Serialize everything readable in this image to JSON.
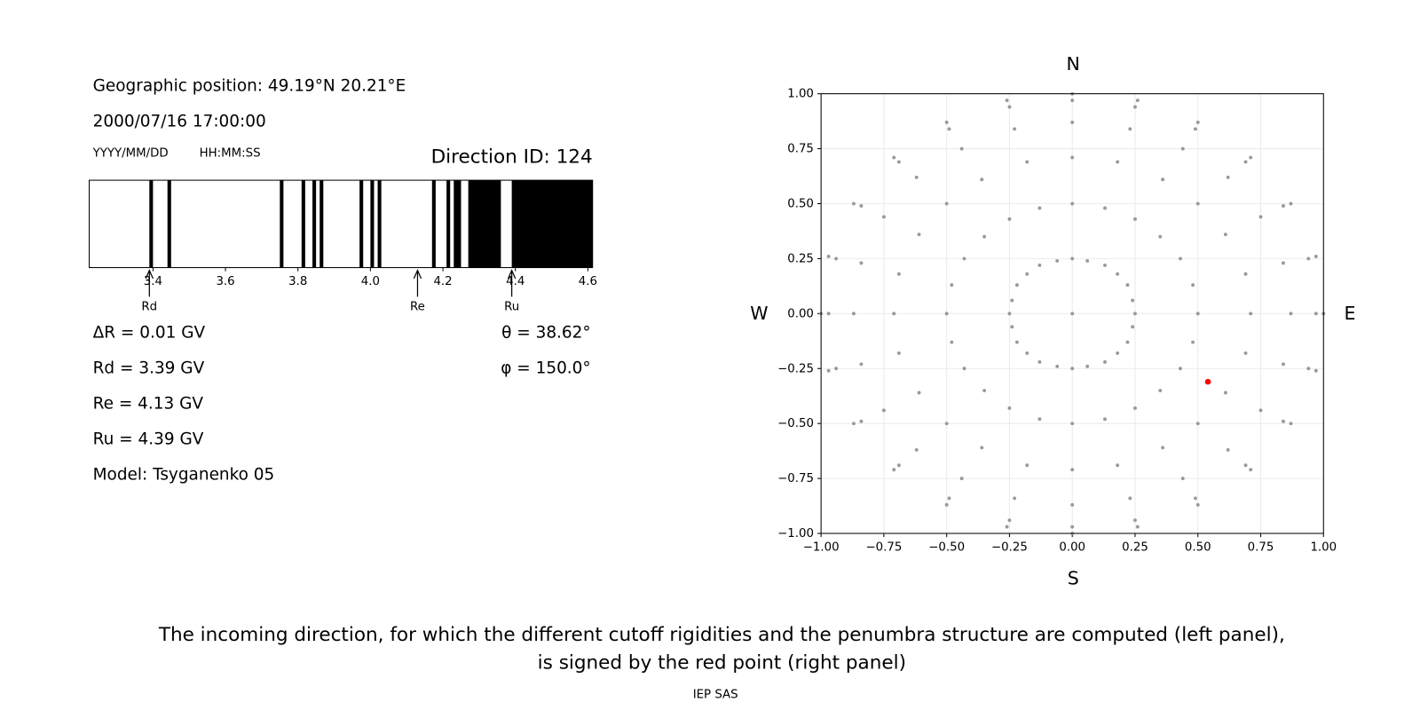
{
  "header": {
    "position": "Geographic position: 49.19°N 20.21°E",
    "datetime": "2000/07/16 17:00:00",
    "date_format": "YYYY/MM/DD",
    "time_format": "HH:MM:SS",
    "direction": "Direction ID: 124"
  },
  "results": [
    "ΔR = 0.01 GV",
    "Rd = 3.39 GV",
    "Re = 4.13 GV",
    "Ru = 4.39 GV",
    "Model: Tsyganenko 05"
  ],
  "angles": [
    "θ = 38.62°",
    "φ = 150.0°"
  ],
  "chart_data": [
    {
      "type": "penumbra",
      "color": "#000000",
      "xlim": [
        3.224,
        4.613
      ],
      "xticks": [
        3.4,
        3.6,
        3.8,
        {
          "value": 4,
          "label": "4.0"
        },
        4.2,
        4.4,
        4.6
      ],
      "bands": [
        [
          3.39,
          3.4
        ],
        [
          3.44,
          3.45
        ],
        [
          3.75,
          3.76
        ],
        [
          3.81,
          3.82
        ],
        [
          3.84,
          3.85
        ],
        [
          3.86,
          3.87
        ],
        [
          3.97,
          3.98
        ],
        [
          4.0,
          4.01
        ],
        [
          4.02,
          4.03
        ],
        [
          4.17,
          4.18
        ],
        [
          4.21,
          4.22
        ],
        [
          4.23,
          4.25
        ],
        [
          4.27,
          4.36
        ],
        [
          4.39,
          4.613
        ]
      ],
      "markers": [
        {
          "label": "Rd",
          "value": 3.39
        },
        {
          "label": "Re",
          "value": 4.13
        },
        {
          "label": "Ru",
          "value": 4.39
        }
      ]
    },
    {
      "type": "scatter",
      "compass": {
        "north": "N",
        "south": "S",
        "west": "W",
        "east": "E"
      },
      "grid": true,
      "xlim": [
        -1,
        1
      ],
      "ylim": [
        -1,
        1
      ],
      "xticks": [
        {
          "value": -1,
          "label": "−1.00"
        },
        {
          "value": -0.75,
          "label": "−0.75"
        },
        {
          "value": -0.5,
          "label": "−0.50"
        },
        {
          "value": -0.25,
          "label": "−0.25"
        },
        {
          "value": 0,
          "label": "0.00"
        },
        {
          "value": 0.25,
          "label": "0.25"
        },
        {
          "value": 0.5,
          "label": "0.50"
        },
        {
          "value": 0.75,
          "label": "0.75"
        },
        {
          "value": 1,
          "label": "1.00"
        }
      ],
      "yticks": [
        {
          "value": -1,
          "label": "−1.00"
        },
        {
          "value": -0.75,
          "label": "−0.75"
        },
        {
          "value": -0.5,
          "label": "−0.50"
        },
        {
          "value": -0.25,
          "label": "−0.25"
        },
        {
          "value": 0,
          "label": "0.00"
        },
        {
          "value": 0.25,
          "label": "0.25"
        },
        {
          "value": 0.5,
          "label": "0.50"
        },
        {
          "value": 0.75,
          "label": "0.75"
        },
        {
          "value": 1,
          "label": "1.00"
        }
      ],
      "series": [
        {
          "color": "#999999",
          "x": [
            0,
            0.25,
            0.5,
            0.71,
            0.87,
            0.97,
            1,
            0.24,
            0.48,
            0.69,
            0.84,
            0.94,
            0.97,
            0.22,
            0.43,
            0.61,
            0.75,
            0.84,
            0.87,
            0.18,
            0.35,
            0.5,
            0.62,
            0.69,
            0.71,
            0.13,
            0.25,
            0.36,
            0.44,
            0.49,
            0.5,
            0.06,
            0.13,
            0.18,
            0.23,
            0.25,
            0.26,
            0,
            0,
            0,
            0,
            0,
            0,
            -0.06,
            -0.13,
            -0.18,
            -0.23,
            -0.25,
            -0.26,
            -0.13,
            -0.25,
            -0.36,
            -0.44,
            -0.49,
            -0.5,
            -0.18,
            -0.35,
            -0.5,
            -0.62,
            -0.69,
            -0.71,
            -0.22,
            -0.43,
            -0.61,
            -0.75,
            -0.84,
            -0.87,
            -0.24,
            -0.48,
            -0.69,
            -0.84,
            -0.94,
            -0.97,
            -0.25,
            -0.5,
            -0.71,
            -0.87,
            -0.97,
            -1,
            -0.24,
            -0.48,
            -0.69,
            -0.84,
            -0.94,
            -0.97,
            -0.22,
            -0.43,
            -0.61,
            -0.75,
            -0.84,
            -0.87,
            -0.18,
            -0.35,
            -0.5,
            -0.62,
            -0.69,
            -0.71,
            -0.13,
            -0.25,
            -0.36,
            -0.44,
            -0.49,
            -0.5,
            -0.06,
            -0.13,
            -0.18,
            -0.23,
            -0.25,
            -0.26,
            0,
            0,
            0,
            0,
            0,
            0,
            0.06,
            0.13,
            0.18,
            0.23,
            0.25,
            0.26,
            0.13,
            0.25,
            0.36,
            0.44,
            0.49,
            0.5,
            0.18,
            0.35,
            0.5,
            0.62,
            0.69,
            0.71,
            0.22,
            0.43,
            0.61,
            0.75,
            0.84,
            0.87,
            0.24,
            0.48,
            0.69,
            0.84,
            0.94,
            0.97
          ],
          "values": [
            0,
            0,
            0,
            0,
            0,
            0,
            0,
            0.06,
            0.13,
            0.18,
            0.23,
            0.25,
            0.26,
            0.13,
            0.25,
            0.36,
            0.44,
            0.49,
            0.5,
            0.18,
            0.35,
            0.5,
            0.62,
            0.69,
            0.71,
            0.22,
            0.43,
            0.61,
            0.75,
            0.84,
            0.87,
            0.24,
            0.48,
            0.69,
            0.84,
            0.94,
            0.97,
            0.25,
            0.5,
            0.71,
            0.87,
            0.97,
            1,
            0.24,
            0.48,
            0.69,
            0.84,
            0.94,
            0.97,
            0.22,
            0.43,
            0.61,
            0.75,
            0.84,
            0.87,
            0.18,
            0.35,
            0.5,
            0.62,
            0.69,
            0.71,
            0.13,
            0.25,
            0.36,
            0.44,
            0.49,
            0.5,
            0.06,
            0.13,
            0.18,
            0.23,
            0.25,
            0.26,
            0,
            0,
            0,
            0,
            0,
            0,
            -0.06,
            -0.13,
            -0.18,
            -0.23,
            -0.25,
            -0.26,
            -0.13,
            -0.25,
            -0.36,
            -0.44,
            -0.49,
            -0.5,
            -0.18,
            -0.35,
            -0.5,
            -0.62,
            -0.69,
            -0.71,
            -0.22,
            -0.43,
            -0.61,
            -0.75,
            -0.84,
            -0.87,
            -0.24,
            -0.48,
            -0.69,
            -0.84,
            -0.94,
            -0.97,
            -0.25,
            -0.5,
            -0.71,
            -0.87,
            -0.97,
            -1,
            -0.24,
            -0.48,
            -0.69,
            -0.84,
            -0.94,
            -0.97,
            -0.22,
            -0.43,
            -0.61,
            -0.75,
            -0.84,
            -0.87,
            -0.18,
            -0.35,
            -0.5,
            -0.62,
            -0.69,
            -0.71,
            -0.13,
            -0.25,
            -0.36,
            -0.44,
            -0.49,
            -0.5,
            -0.06,
            -0.13,
            -0.18,
            -0.23,
            -0.25,
            -0.26
          ]
        },
        {
          "color": "#ff0000",
          "x": [
            0.54
          ],
          "values": [
            -0.31
          ]
        }
      ]
    }
  ],
  "caption": [
    "The incoming direction, for which the different cutoff rigidities and the penumbra structure are computed (left panel),",
    "is signed by the red point (right panel)"
  ],
  "footer": "IEP SAS"
}
